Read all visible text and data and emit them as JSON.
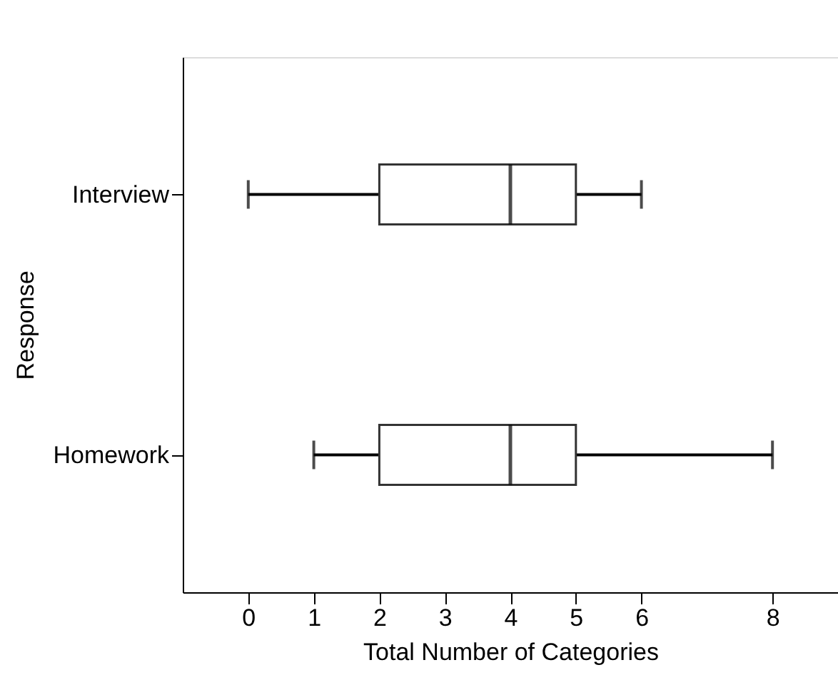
{
  "chart_data": {
    "type": "box",
    "orientation": "horizontal",
    "xlabel": "Total Number of Categories",
    "ylabel": "Response",
    "categories": [
      "Interview",
      "Homework"
    ],
    "boxes": [
      {
        "low": 0,
        "q1": 2,
        "median": 4,
        "q3": 5,
        "high": 6
      },
      {
        "low": 1,
        "q1": 2,
        "median": 4,
        "q3": 5,
        "high": 8
      }
    ],
    "xlim": [
      -1,
      9
    ],
    "xticks": [
      0,
      1,
      2,
      3,
      4,
      5,
      6,
      8
    ]
  }
}
